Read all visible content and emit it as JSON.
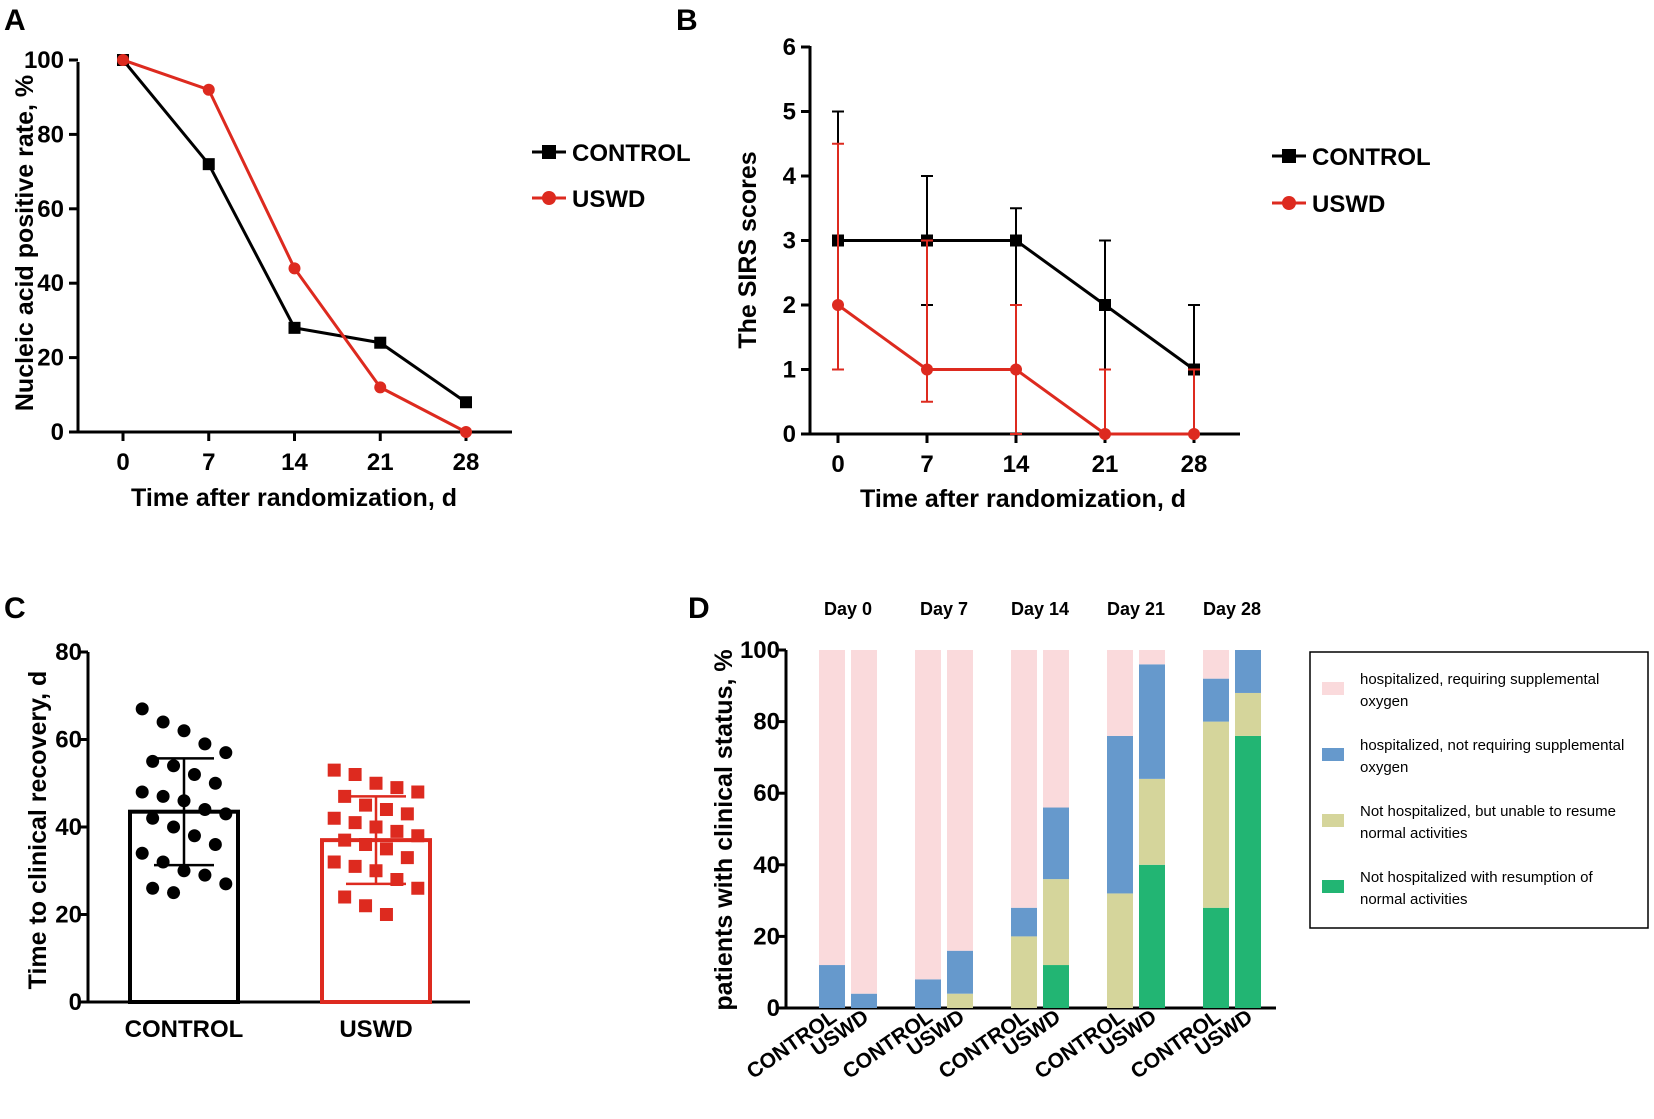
{
  "chart_data": [
    {
      "panel": "A",
      "type": "line",
      "x": [
        0,
        7,
        14,
        21,
        28
      ],
      "series": [
        {
          "name": "CONTROL",
          "color": "#000000",
          "marker": "square",
          "values": [
            100,
            72,
            28,
            24,
            8
          ]
        },
        {
          "name": "USWD",
          "color": "#dd2a1f",
          "marker": "circle",
          "values": [
            100,
            92,
            44,
            12,
            0
          ]
        }
      ],
      "xticks": [
        "0",
        "7",
        "14",
        "21",
        "28"
      ],
      "yticks": [
        "0",
        "20",
        "40",
        "60",
        "80",
        "100"
      ],
      "xlabel": "Time after randomization, d",
      "ylabel": "Nucleic acid positive rate, %",
      "ylim": [
        0,
        100
      ],
      "legend": "right"
    },
    {
      "panel": "B",
      "type": "line",
      "x": [
        0,
        7,
        14,
        21,
        28
      ],
      "series": [
        {
          "name": "CONTROL",
          "color": "#000000",
          "marker": "square",
          "values": [
            3,
            3,
            3,
            2,
            1
          ],
          "err_low": [
            3,
            2,
            2,
            1,
            1
          ],
          "err_high": [
            5,
            4,
            3.5,
            3,
            2
          ]
        },
        {
          "name": "USWD",
          "color": "#dd2a1f",
          "marker": "circle",
          "values": [
            2,
            1,
            1,
            0,
            0
          ],
          "err_low": [
            1,
            0.5,
            0,
            0,
            0
          ],
          "err_high": [
            4.5,
            3,
            2,
            1,
            1
          ]
        }
      ],
      "xticks": [
        "0",
        "7",
        "14",
        "21",
        "28"
      ],
      "yticks": [
        "0",
        "1",
        "2",
        "3",
        "4",
        "5",
        "6"
      ],
      "xlabel": "Time after randomization, d",
      "ylabel": "The SIRS scores",
      "ylim": [
        0,
        6
      ],
      "legend": "right"
    },
    {
      "panel": "C",
      "type": "bar",
      "categories": [
        "CONTROL",
        "USWD"
      ],
      "colors": [
        "#000000",
        "#dd2a1f"
      ],
      "values": [
        43.5,
        37
      ],
      "sd": [
        12.2,
        10
      ],
      "points": [
        [
          67,
          64,
          62,
          59,
          57,
          55,
          54,
          52,
          50,
          48,
          47,
          46,
          44,
          43,
          42,
          40,
          38,
          36,
          34,
          32,
          30,
          29,
          27,
          26,
          25
        ],
        [
          53,
          52,
          50,
          49,
          48,
          47,
          45,
          44,
          43,
          42,
          41,
          40,
          39,
          38,
          37,
          36,
          35,
          33,
          32,
          31,
          30,
          28,
          26,
          24,
          22,
          20
        ]
      ],
      "yticks": [
        "0",
        "20",
        "40",
        "60",
        "80"
      ],
      "ylabel": "Time to clinical recovery, d",
      "ylim": [
        0,
        80
      ]
    },
    {
      "panel": "D",
      "type": "bar",
      "stacked": true,
      "groups": [
        "Day 0",
        "Day 7",
        "Day 14",
        "Day 21",
        "Day 28"
      ],
      "categories": [
        "CONTROL",
        "USWD"
      ],
      "series": [
        {
          "name": "Not hospitalized with resumption of normal activities",
          "color": "#22b573",
          "values": [
            [
              0,
              0
            ],
            [
              0,
              0
            ],
            [
              0,
              12
            ],
            [
              0,
              40
            ],
            [
              28,
              76
            ]
          ]
        },
        {
          "name": "Not hospitalized, but unable to resume normal activities",
          "color": "#d5d59b",
          "values": [
            [
              0,
              0
            ],
            [
              0,
              4
            ],
            [
              20,
              24
            ],
            [
              32,
              24
            ],
            [
              52,
              12
            ]
          ]
        },
        {
          "name": "hospitalized, not requiring supplemental oxygen",
          "color": "#6699cc",
          "values": [
            [
              12,
              4
            ],
            [
              8,
              12
            ],
            [
              8,
              20
            ],
            [
              44,
              32
            ],
            [
              12,
              12
            ]
          ]
        },
        {
          "name": "hospitalized, requiring supplemental oxygen",
          "color": "#fadadc",
          "values": [
            [
              88,
              96
            ],
            [
              92,
              84
            ],
            [
              72,
              44
            ],
            [
              24,
              4
            ],
            [
              8,
              0
            ]
          ]
        }
      ],
      "legend_lines": [
        [
          "hospitalized,  requiring supplemental",
          "oxygen"
        ],
        [
          "hospitalized, not requiring supplemental",
          "oxygen"
        ],
        [
          "Not hospitalized, but unable to resume",
          "normal activities"
        ],
        [
          "Not hospitalized with resumption of",
          "normal activities"
        ]
      ],
      "yticks": [
        "0",
        "20",
        "40",
        "60",
        "80",
        "100"
      ],
      "ylabel": "patients with clinical status, %",
      "ylim": [
        0,
        100
      ]
    }
  ]
}
